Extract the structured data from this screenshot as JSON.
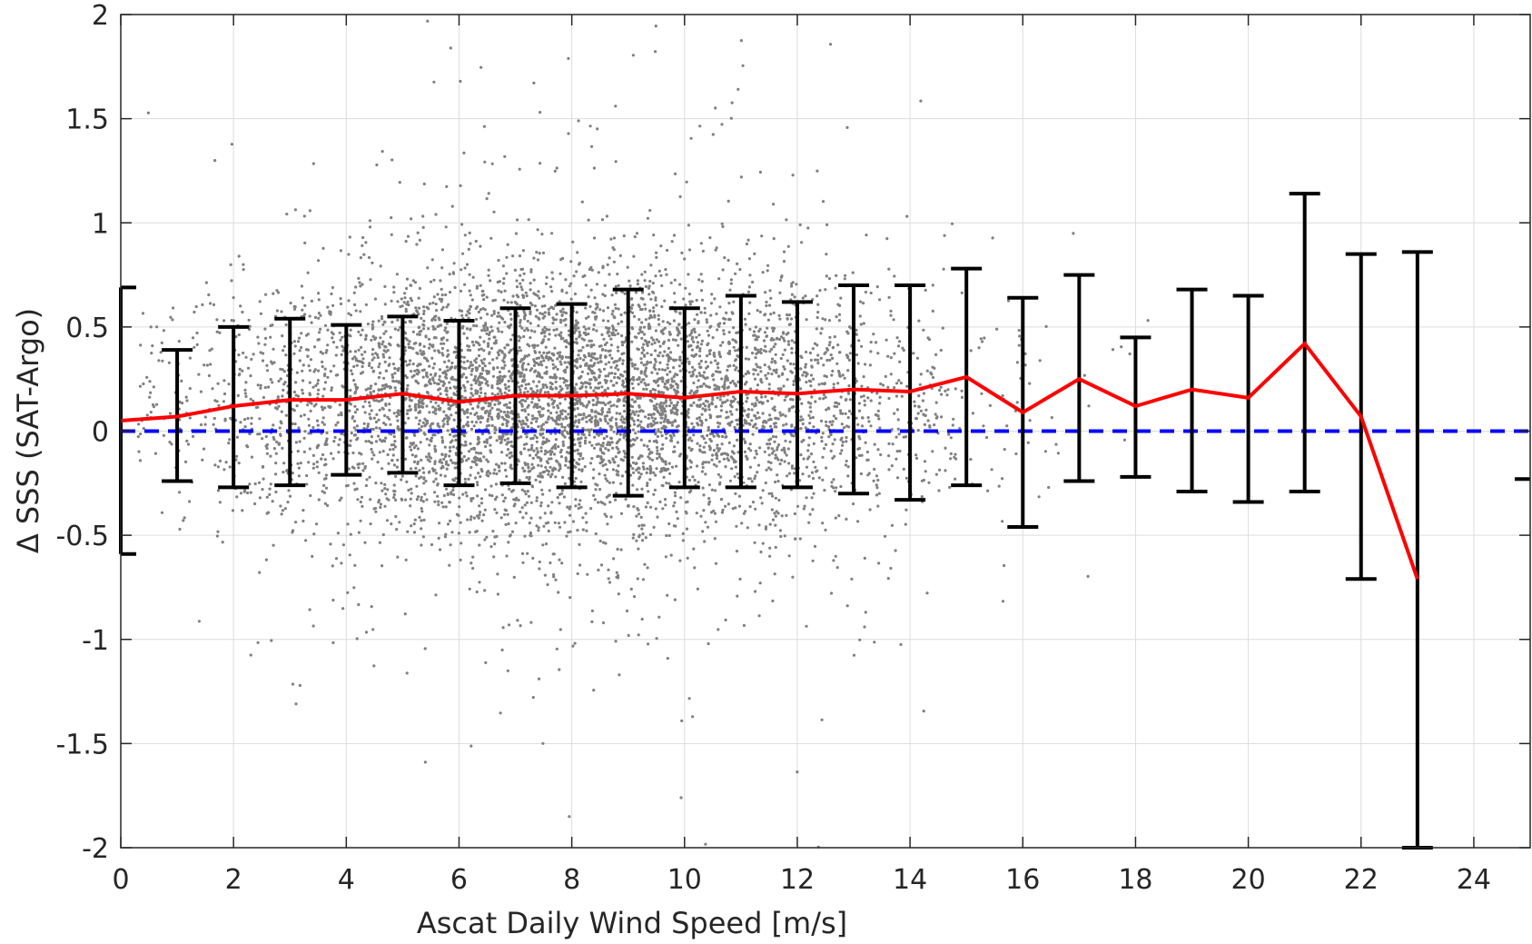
{
  "chart_data": {
    "type": "scatter",
    "title": "",
    "xlabel": "Ascat Daily Wind Speed [m/s]",
    "ylabel": "Δ SSS (SAT-Argo)",
    "xlim": [
      0,
      25
    ],
    "ylim": [
      -2,
      2
    ],
    "xticks": [
      0,
      2,
      4,
      6,
      8,
      10,
      12,
      14,
      16,
      18,
      20,
      22,
      24
    ],
    "yticks": [
      -2,
      -1.5,
      -1,
      -0.5,
      0,
      0.5,
      1,
      1.5,
      2
    ],
    "xtick_labels": [
      "0",
      "2",
      "4",
      "6",
      "8",
      "10",
      "12",
      "14",
      "16",
      "18",
      "20",
      "22",
      "24"
    ],
    "ytick_labels": [
      "-2",
      "-1.5",
      "-1",
      "-0.5",
      "0",
      "0.5",
      "1",
      "1.5",
      "2"
    ],
    "grid": true,
    "legend": "none",
    "colors": {
      "scatter": "#808080",
      "mean_line": "#ff0000",
      "zero_line": "#0000ff",
      "error_bars": "#000000",
      "grid": "#dcdcdc",
      "axes": "#262626"
    },
    "zero_reference_line": {
      "y": 0,
      "style": "dashed"
    },
    "scatter_points": {
      "description_count": "approximately 6000 points",
      "x_range": [
        0,
        25
      ],
      "core_mean": 0.15,
      "core_std": 0.3,
      "peak_density_x": 8
    },
    "mean_line": {
      "x": [
        0,
        1,
        2,
        3,
        4,
        5,
        6,
        7,
        8,
        9,
        10,
        11,
        12,
        13,
        14,
        15,
        16,
        17,
        18,
        19,
        20,
        21,
        22,
        23
      ],
      "y": [
        0.05,
        0.07,
        0.12,
        0.15,
        0.15,
        0.18,
        0.14,
        0.17,
        0.17,
        0.18,
        0.16,
        0.19,
        0.18,
        0.2,
        0.19,
        0.26,
        0.09,
        0.25,
        0.12,
        0.2,
        0.16,
        0.42,
        0.07,
        -0.71
      ]
    },
    "error_bars": {
      "x": [
        0,
        1,
        2,
        3,
        4,
        5,
        6,
        7,
        8,
        9,
        10,
        11,
        12,
        13,
        14,
        15,
        16,
        17,
        18,
        19,
        20,
        21,
        22,
        23,
        25
      ],
      "upper": [
        0.69,
        0.39,
        0.5,
        0.54,
        0.51,
        0.55,
        0.53,
        0.59,
        0.61,
        0.68,
        0.59,
        0.65,
        0.62,
        0.7,
        0.7,
        0.78,
        0.64,
        0.75,
        0.45,
        0.68,
        0.65,
        1.14,
        0.85,
        0.86,
        null
      ],
      "lower": [
        -0.59,
        -0.24,
        -0.27,
        -0.26,
        -0.21,
        -0.2,
        -0.26,
        -0.25,
        -0.27,
        -0.31,
        -0.27,
        -0.27,
        -0.27,
        -0.3,
        -0.33,
        -0.26,
        -0.46,
        -0.24,
        -0.22,
        -0.29,
        -0.34,
        -0.29,
        -0.71,
        -2.0,
        -0.23
      ]
    }
  }
}
